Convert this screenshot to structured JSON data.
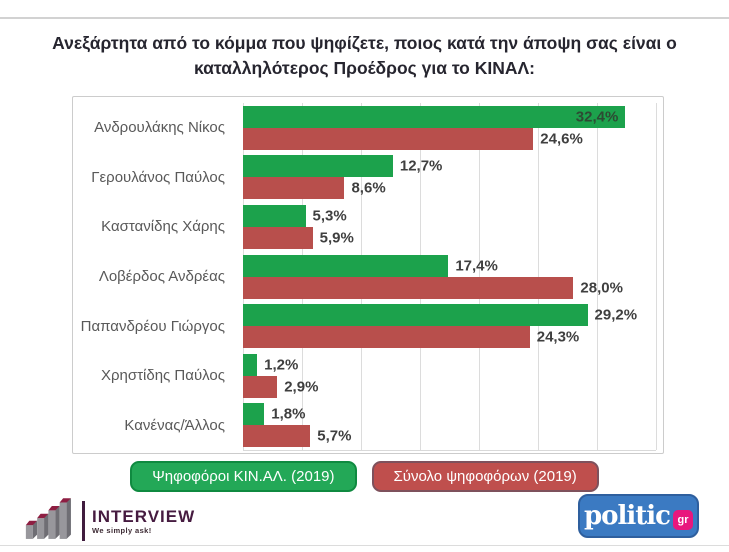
{
  "header": {
    "title_line1": "Ανεξάρτητα από το κόμμα που ψηφίζετε, ποιος κατά την άποψη σας είναι ο",
    "title_line2": "καταλληλότερος Προέδρος για το ΚΙΝΑΛ:"
  },
  "chart_data": {
    "type": "bar",
    "orientation": "horizontal",
    "title": "Ανεξάρτητα από το κόμμα που ψηφίζετε, ποιος κατά την άποψη σας είναι ο καταλληλότερος Προέδρος για το ΚΙΝΑΛ:",
    "categories": [
      "Ανδρουλάκης Νίκος",
      "Γερουλάνος Παύλος",
      "Καστανίδης Χάρης",
      "Λοβέρδος Ανδρέας",
      "Παπανδρέου Γιώργος",
      "Χρηστίδης Παύλος",
      "Κανένας/Άλλος"
    ],
    "series": [
      {
        "name": "Ψηφοφόροι ΚΙΝ.ΑΛ. (2019)",
        "color": "#1ca24c",
        "values": [
          32.4,
          12.7,
          5.3,
          17.4,
          29.2,
          1.2,
          1.8
        ],
        "value_labels": [
          "32,4%",
          "12,7%",
          "5,3%",
          "17,4%",
          "29,2%",
          "1,2%",
          "1,8%"
        ]
      },
      {
        "name": "Σύνολο ψηφοφόρων (2019)",
        "color": "#b84f4c",
        "values": [
          24.6,
          8.6,
          5.9,
          28.0,
          24.3,
          2.9,
          5.7
        ],
        "value_labels": [
          "24,6%",
          "8,6%",
          "5,9%",
          "28,0%",
          "24,3%",
          "2,9%",
          "5,7%"
        ]
      }
    ],
    "xlim": [
      0,
      35
    ],
    "gridline_step": 5,
    "grid": true,
    "legend_position": "bottom"
  },
  "legend": {
    "items": [
      {
        "label": "Ψηφοφόροι ΚΙΝ.ΑΛ. (2019)",
        "bg": "#23a857",
        "border": "#0f8a40"
      },
      {
        "label": "Σύνολο ψηφοφόρων (2019)",
        "bg": "#bf4f4d",
        "border": "#7e515c"
      }
    ]
  },
  "footer": {
    "interview": {
      "brand": "INTERVIEW",
      "tagline": "We simply ask!"
    },
    "politic": {
      "brand": "politic",
      "suffix": "gr"
    }
  }
}
